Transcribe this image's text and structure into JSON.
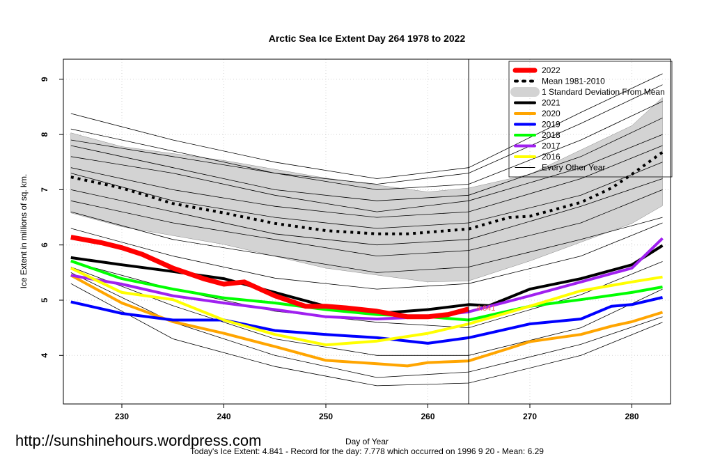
{
  "chart_data": {
    "type": "line",
    "title": "Arctic Sea Ice Extent Day 264 1978 to 2022",
    "xlabel": "Day of Year",
    "ylabel": "Ice Extent in millions of sq. km.",
    "xlim": [
      225,
      283
    ],
    "ylim": [
      3.3,
      9.3
    ],
    "xticks": [
      230,
      240,
      250,
      260,
      270,
      280
    ],
    "yticks": [
      4,
      5,
      6,
      7,
      8,
      9
    ],
    "grid": true,
    "legend_position": "top-right",
    "marker_day": 264,
    "sd_band": {
      "name": "1 Standard Deviation From Mean",
      "color": "#d3d3d3",
      "x": [
        225,
        230,
        240,
        250,
        260,
        264,
        270,
        280,
        283
      ],
      "upper": [
        8.03,
        7.78,
        7.53,
        7.21,
        6.96,
        7.03,
        7.28,
        8.16,
        8.67
      ],
      "lower": [
        6.58,
        6.33,
        6.01,
        5.58,
        5.33,
        5.35,
        5.71,
        6.39,
        6.71
      ]
    },
    "series": [
      {
        "name": "2022",
        "color": "#ff0000",
        "width": 7,
        "x": [
          225,
          228,
          230,
          232,
          235,
          238,
          240,
          242,
          245,
          248,
          250,
          252,
          255,
          258,
          260,
          262,
          264
        ],
        "y": [
          6.14,
          6.04,
          5.95,
          5.83,
          5.58,
          5.39,
          5.29,
          5.33,
          5.08,
          4.89,
          4.89,
          4.86,
          4.8,
          4.7,
          4.7,
          4.74,
          4.841
        ]
      },
      {
        "name": "Mean 1981-2010",
        "color": "#000000",
        "width": 4,
        "dash": true,
        "x": [
          225,
          230,
          235,
          240,
          245,
          250,
          255,
          258,
          260,
          264,
          268,
          270,
          275,
          278,
          280,
          283
        ],
        "y": [
          7.23,
          7.03,
          6.75,
          6.58,
          6.39,
          6.26,
          6.2,
          6.2,
          6.23,
          6.29,
          6.5,
          6.52,
          6.77,
          7.03,
          7.28,
          7.68
        ]
      },
      {
        "name": "2021",
        "color": "#000000",
        "width": 4,
        "x": [
          225,
          230,
          235,
          240,
          245,
          250,
          255,
          260,
          264,
          266,
          270,
          275,
          280,
          283
        ],
        "y": [
          5.77,
          5.64,
          5.52,
          5.39,
          5.14,
          4.89,
          4.76,
          4.83,
          4.92,
          4.9,
          5.2,
          5.39,
          5.64,
          5.99
        ]
      },
      {
        "name": "2020",
        "color": "#ffa500",
        "width": 4,
        "x": [
          225,
          230,
          235,
          240,
          245,
          250,
          255,
          258,
          260,
          264,
          268,
          270,
          275,
          278,
          280,
          283
        ],
        "y": [
          5.45,
          4.95,
          4.61,
          4.4,
          4.16,
          3.91,
          3.85,
          3.81,
          3.87,
          3.9,
          4.13,
          4.25,
          4.38,
          4.53,
          4.61,
          4.78
        ]
      },
      {
        "name": "2019",
        "color": "#0000ff",
        "width": 4,
        "x": [
          225,
          230,
          235,
          240,
          245,
          250,
          255,
          260,
          264,
          270,
          275,
          278,
          280,
          283
        ],
        "y": [
          4.97,
          4.76,
          4.64,
          4.64,
          4.45,
          4.38,
          4.32,
          4.22,
          4.32,
          4.57,
          4.66,
          4.89,
          4.92,
          5.05
        ]
      },
      {
        "name": "2018",
        "color": "#00ff00",
        "width": 4,
        "x": [
          225,
          230,
          235,
          240,
          245,
          250,
          255,
          260,
          264,
          270,
          275,
          280,
          283
        ],
        "y": [
          5.71,
          5.39,
          5.2,
          5.04,
          4.95,
          4.83,
          4.74,
          4.7,
          4.64,
          4.89,
          5.01,
          5.14,
          5.24
        ]
      },
      {
        "name": "2017",
        "color": "#a020f0",
        "width": 4,
        "x": [
          225,
          230,
          235,
          240,
          245,
          250,
          255,
          260,
          264,
          270,
          275,
          280,
          283
        ],
        "y": [
          5.45,
          5.29,
          5.08,
          4.95,
          4.83,
          4.7,
          4.66,
          4.7,
          4.79,
          5.08,
          5.33,
          5.58,
          6.12
        ]
      },
      {
        "name": "2016",
        "color": "#ffff00",
        "width": 4,
        "x": [
          225,
          230,
          235,
          240,
          245,
          250,
          255,
          260,
          264,
          270,
          275,
          280,
          283
        ],
        "y": [
          5.58,
          5.14,
          5.01,
          4.64,
          4.38,
          4.19,
          4.26,
          4.4,
          4.57,
          4.89,
          5.17,
          5.33,
          5.42
        ]
      }
    ],
    "other_years": {
      "name": "Every Other Year",
      "x": [
        225,
        235,
        245,
        255,
        264,
        275,
        283
      ],
      "lines": [
        [
          8.38,
          7.9,
          7.5,
          7.2,
          7.4,
          8.4,
          9.1
        ],
        [
          8.1,
          7.7,
          7.3,
          7.1,
          7.3,
          8.2,
          8.9
        ],
        [
          7.9,
          7.6,
          7.3,
          7.0,
          7.1,
          7.9,
          8.6
        ],
        [
          7.8,
          7.4,
          7.0,
          6.8,
          6.9,
          7.6,
          8.3
        ],
        [
          7.6,
          7.3,
          6.9,
          6.6,
          6.8,
          7.4,
          8.0
        ],
        [
          7.4,
          7.0,
          6.7,
          6.5,
          6.6,
          7.2,
          7.8
        ],
        [
          7.3,
          6.8,
          6.5,
          6.3,
          6.4,
          6.9,
          7.5
        ],
        [
          7.0,
          6.6,
          6.2,
          6.0,
          6.1,
          6.7,
          7.2
        ],
        [
          6.8,
          6.4,
          6.1,
          5.8,
          5.9,
          6.4,
          7.0
        ],
        [
          6.6,
          6.1,
          5.8,
          5.5,
          5.6,
          6.1,
          6.5
        ],
        [
          6.3,
          5.8,
          5.4,
          5.2,
          5.3,
          5.8,
          6.4
        ],
        [
          5.7,
          5.2,
          4.8,
          4.6,
          4.5,
          5.1,
          5.7
        ],
        [
          5.6,
          4.9,
          4.3,
          4.0,
          4.0,
          4.5,
          5.2
        ],
        [
          5.5,
          4.6,
          4.0,
          3.6,
          3.7,
          4.2,
          4.7
        ],
        [
          5.3,
          4.3,
          3.8,
          3.45,
          3.5,
          4.0,
          4.6
        ]
      ]
    }
  },
  "watermark": "http://sunshinehours.wordpress.com",
  "footer": "Today's Ice Extent: 4.841  - Record for the day: 7.778 which occurred on 1996 9 20  - Mean: 6.29",
  "label_2022": "4.841"
}
